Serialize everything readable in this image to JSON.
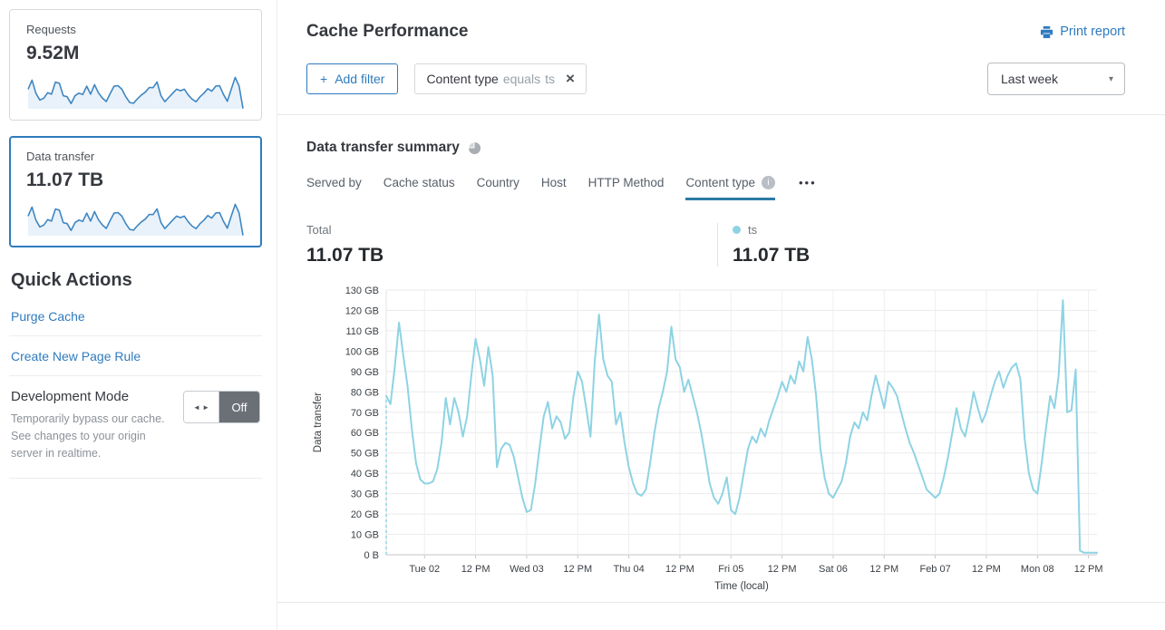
{
  "sidebar": {
    "cards": [
      {
        "label": "Requests",
        "value": "9.52M"
      },
      {
        "label": "Data transfer",
        "value": "11.07 TB"
      }
    ],
    "quick_actions": {
      "title": "Quick Actions",
      "purge_cache": "Purge Cache",
      "create_page_rule": "Create New Page Rule",
      "dev_mode": {
        "title": "Development Mode",
        "description": "Temporarily bypass our cache. See changes to your origin server in realtime.",
        "toggle_state": "Off"
      }
    }
  },
  "header": {
    "title": "Cache Performance",
    "print_label": "Print report",
    "add_filter_label": "Add filter",
    "filter_chip": {
      "field": "Content type",
      "operator": "equals",
      "value": "ts"
    },
    "range_selected": "Last week"
  },
  "summary": {
    "title": "Data transfer summary",
    "tabs": [
      "Served by",
      "Cache status",
      "Country",
      "Host",
      "HTTP Method",
      "Content type"
    ],
    "active_tab": "Content type",
    "total_label": "Total",
    "total_value": "11.07 TB",
    "legend": {
      "name": "ts",
      "value": "11.07 TB",
      "color": "#8ed3e4"
    }
  },
  "icons": {
    "plus": "+",
    "close": "×",
    "caret": "▾",
    "ellipsis": "•••",
    "toggle_arrows": "◄ ►",
    "info": "i"
  },
  "colors": {
    "accent_blue": "#2f7bbf",
    "chart_line": "#8ed3e4",
    "sparkline": "#3e86c2",
    "active_tab_underline": "#2c7ba6",
    "toggle_off_bg": "#6b7077"
  },
  "chart_data": {
    "type": "line",
    "title": "Data transfer summary – ts",
    "xlabel": "Time (local)",
    "ylabel": "Data transfer",
    "ylim": [
      0,
      130
    ],
    "unit": "GB",
    "grid": true,
    "y_ticks": [
      "0 B",
      "10 GB",
      "20 GB",
      "30 GB",
      "40 GB",
      "50 GB",
      "60 GB",
      "70 GB",
      "80 GB",
      "90 GB",
      "100 GB",
      "110 GB",
      "120 GB",
      "130 GB"
    ],
    "x_ticks": [
      "Tue 02",
      "12 PM",
      "Wed 03",
      "12 PM",
      "Thu 04",
      "12 PM",
      "Fri 05",
      "12 PM",
      "Sat 06",
      "12 PM",
      "Feb 07",
      "12 PM",
      "Mon 08",
      "12 PM"
    ],
    "x_tick_first_index": 9,
    "x_tick_step": 12,
    "dashed_lead_in": true,
    "series": [
      {
        "name": "ts",
        "color": "#8ed3e4",
        "values": [
          78,
          74,
          92,
          114,
          98,
          83,
          62,
          45,
          37,
          35,
          35,
          36,
          42,
          55,
          77,
          64,
          77,
          70,
          58,
          68,
          88,
          106,
          96,
          83,
          102,
          88,
          43,
          52,
          55,
          54,
          48,
          38,
          28,
          21,
          22,
          35,
          52,
          68,
          75,
          62,
          68,
          65,
          57,
          60,
          78,
          90,
          85,
          72,
          58,
          95,
          118,
          96,
          88,
          85,
          64,
          70,
          55,
          43,
          35,
          30,
          29,
          32,
          45,
          60,
          72,
          80,
          90,
          112,
          96,
          92,
          80,
          86,
          78,
          70,
          60,
          48,
          35,
          28,
          25,
          30,
          38,
          22,
          20,
          28,
          40,
          52,
          58,
          55,
          62,
          58,
          66,
          72,
          78,
          85,
          80,
          88,
          84,
          95,
          90,
          107,
          96,
          78,
          52,
          38,
          30,
          28,
          32,
          36,
          45,
          58,
          65,
          62,
          70,
          66,
          78,
          88,
          80,
          72,
          85,
          82,
          78,
          70,
          62,
          55,
          50,
          44,
          38,
          32,
          30,
          28,
          30,
          38,
          48,
          60,
          72,
          62,
          58,
          68,
          80,
          72,
          65,
          70,
          78,
          85,
          90,
          82,
          88,
          92,
          94,
          86,
          57,
          40,
          32,
          30,
          45,
          62,
          78,
          72,
          88,
          125,
          70,
          71,
          91,
          2,
          1,
          1,
          1,
          1
        ]
      }
    ]
  }
}
